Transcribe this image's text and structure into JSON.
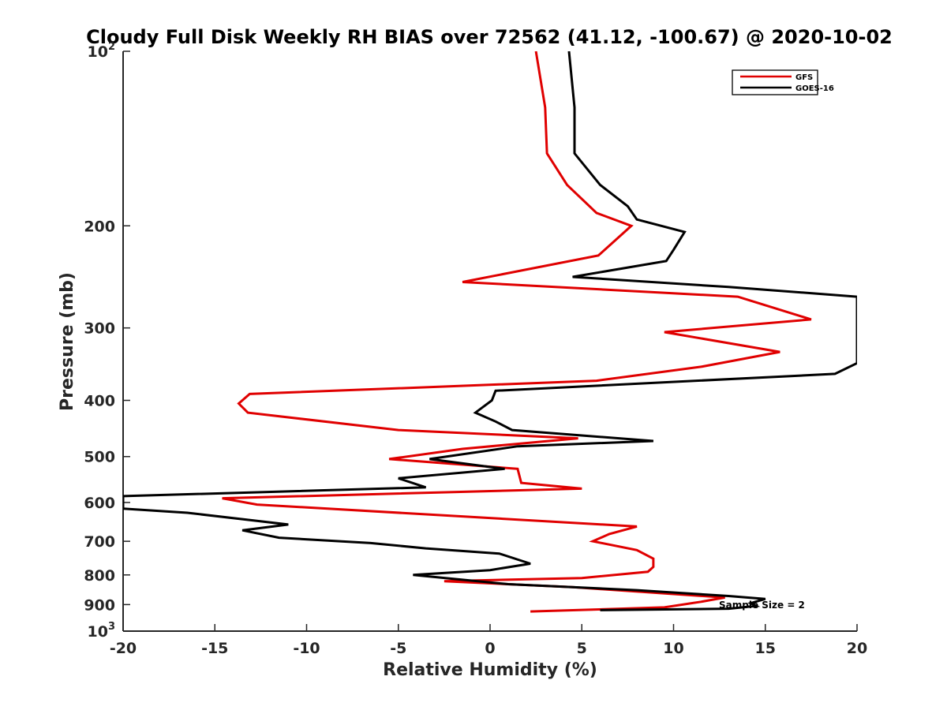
{
  "chart_data": {
    "type": "line",
    "title": "Cloudy Full Disk Weekly RH BIAS over 72562 (41.12, -100.67) @ 2020-10-02",
    "xlabel": "Relative Humidity (%)",
    "ylabel": "Pressure (mb)",
    "xlim": [
      -20,
      20
    ],
    "ylim": [
      100,
      1000
    ],
    "yscale": "log",
    "y_reversed": true,
    "grid": false,
    "legend_position": "top-right",
    "x_ticks": [
      "-20",
      "-15",
      "-10",
      "-5",
      "0",
      "5",
      "10",
      "15",
      "20"
    ],
    "y_ticks": [
      {
        "value": 100,
        "base": "10",
        "exp": "2"
      },
      {
        "value": 200,
        "label": "200"
      },
      {
        "value": 300,
        "label": "300"
      },
      {
        "value": 400,
        "label": "400"
      },
      {
        "value": 500,
        "label": "500"
      },
      {
        "value": 600,
        "label": "600"
      },
      {
        "value": 700,
        "label": "700"
      },
      {
        "value": 800,
        "label": "800"
      },
      {
        "value": 900,
        "label": "900"
      },
      {
        "value": 1000,
        "base": "10",
        "exp": "3"
      }
    ],
    "annotation": "Sample Size = 2",
    "series": [
      {
        "name": "GFS",
        "color": "#e00000",
        "points": [
          [
            2.5,
            100
          ],
          [
            3.0,
            125
          ],
          [
            3.1,
            150
          ],
          [
            4.2,
            170
          ],
          [
            5.8,
            190
          ],
          [
            7.7,
            200
          ],
          [
            5.9,
            225
          ],
          [
            -1.5,
            250
          ],
          [
            13.5,
            265
          ],
          [
            17.5,
            290
          ],
          [
            9.5,
            305
          ],
          [
            15.8,
            330
          ],
          [
            11.5,
            350
          ],
          [
            5.8,
            370
          ],
          [
            -13.1,
            390
          ],
          [
            -13.7,
            405
          ],
          [
            -13.2,
            420
          ],
          [
            -5.0,
            450
          ],
          [
            4.8,
            465
          ],
          [
            -1.5,
            485
          ],
          [
            -5.5,
            505
          ],
          [
            1.5,
            525
          ],
          [
            1.7,
            555
          ],
          [
            5.0,
            568
          ],
          [
            -14.6,
            590
          ],
          [
            -12.7,
            605
          ],
          [
            8.0,
            660
          ],
          [
            6.5,
            680
          ],
          [
            5.6,
            700
          ],
          [
            8.0,
            725
          ],
          [
            8.9,
            750
          ],
          [
            8.9,
            775
          ],
          [
            8.6,
            790
          ],
          [
            5.0,
            810
          ],
          [
            -2.5,
            820
          ],
          [
            4.5,
            840
          ],
          [
            12.8,
            875
          ],
          [
            11.5,
            890
          ],
          [
            9.5,
            910
          ],
          [
            2.2,
            925
          ]
        ]
      },
      {
        "name": "GOES-16",
        "color": "#000000",
        "points": [
          [
            4.3,
            100
          ],
          [
            4.6,
            125
          ],
          [
            4.6,
            150
          ],
          [
            6.0,
            170
          ],
          [
            7.5,
            185
          ],
          [
            8.0,
            195
          ],
          [
            10.6,
            205
          ],
          [
            10.0,
            220
          ],
          [
            9.6,
            230
          ],
          [
            4.5,
            245
          ],
          [
            13.0,
            255
          ],
          [
            20.0,
            265
          ],
          [
            20.0,
            345
          ],
          [
            18.8,
            360
          ],
          [
            0.3,
            385
          ],
          [
            0.1,
            400
          ],
          [
            -0.8,
            420
          ],
          [
            0.3,
            435
          ],
          [
            1.2,
            450
          ],
          [
            8.9,
            470
          ],
          [
            1.5,
            480
          ],
          [
            -3.3,
            505
          ],
          [
            0.8,
            525
          ],
          [
            -5.0,
            545
          ],
          [
            -3.5,
            565
          ],
          [
            -20.0,
            585
          ],
          [
            -20.0,
            615
          ],
          [
            -16.5,
            625
          ],
          [
            -11.0,
            655
          ],
          [
            -13.5,
            670
          ],
          [
            -11.5,
            690
          ],
          [
            -6.5,
            705
          ],
          [
            -3.5,
            720
          ],
          [
            0.5,
            735
          ],
          [
            2.2,
            765
          ],
          [
            0.0,
            785
          ],
          [
            -4.2,
            800
          ],
          [
            1.0,
            830
          ],
          [
            8.0,
            850
          ],
          [
            13.0,
            870
          ],
          [
            15.0,
            880
          ],
          [
            14.2,
            895
          ],
          [
            14.5,
            905
          ],
          [
            13.0,
            915
          ],
          [
            6.0,
            920
          ]
        ]
      }
    ]
  }
}
